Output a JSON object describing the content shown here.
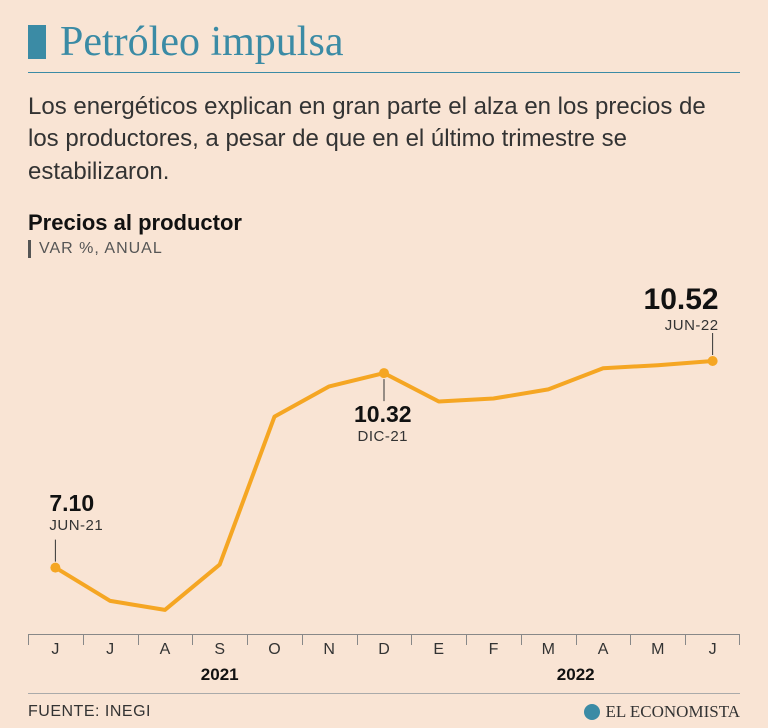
{
  "title": "Petróleo impulsa",
  "description": "Los energéticos explican en gran parte el alza en los precios de los productores, a pesar de que en el último trimestre se estabilizaron.",
  "chart": {
    "type": "line",
    "title": "Precios al productor",
    "subtitle": "VAR %, ANUAL",
    "line_color": "#f5a623",
    "line_width": 4,
    "marker_color": "#f5a623",
    "marker_radius": 5,
    "background_color": "#f9e4d4",
    "axis_color": "#888888",
    "ylim": [
      6.2,
      11.0
    ],
    "categories": [
      "J",
      "J",
      "A",
      "S",
      "O",
      "N",
      "D",
      "E",
      "F",
      "M",
      "A",
      "M",
      "J"
    ],
    "values": [
      7.1,
      6.55,
      6.4,
      7.15,
      9.6,
      10.1,
      10.32,
      9.85,
      9.9,
      10.05,
      10.4,
      10.45,
      10.52
    ],
    "markers_at": [
      0,
      6,
      12
    ],
    "years": [
      {
        "label": "2021",
        "span": 7
      },
      {
        "label": "2022",
        "span": 6
      }
    ],
    "annotations": [
      {
        "index": 0,
        "value": "7.10",
        "date": "JUN-21",
        "placement": "above",
        "val_fs": 23
      },
      {
        "index": 6,
        "value": "10.32",
        "date": "DIC-21",
        "placement": "below",
        "val_fs": 23
      },
      {
        "index": 12,
        "value": "10.52",
        "date": "JUN-22",
        "placement": "above",
        "val_fs": 30,
        "align": "right"
      }
    ]
  },
  "footer": {
    "source": "FUENTE: INEGI",
    "brand": "EL ECONOMISTA"
  },
  "colors": {
    "accent": "#3b8ba5",
    "text": "#333333"
  }
}
